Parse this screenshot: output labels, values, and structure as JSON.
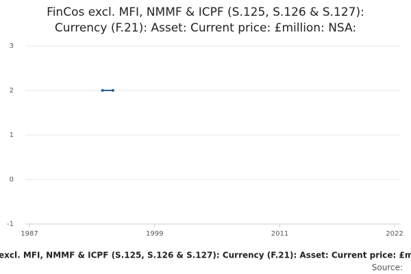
{
  "chart_data": {
    "type": "line",
    "title": [
      "FinCos excl. MFI, NMMF & ICPF (S.125, S.126 & S.127):",
      "Currency (F.21): Asset: Current price: £million: NSA:"
    ],
    "x_label": "excl. MFI, NMMF & ICPF (S.125, S.126 & S.127): Currency (F.21): Asset: Current price: £m",
    "source": "Source:",
    "x": [
      1994,
      1995
    ],
    "series": [
      {
        "name": "FinCos excl. MFI, NMMF & ICPF (S.125, S.126 & S.127): Currency (F.21): Asset: Current price: £million: NSA:",
        "color": "#206095",
        "values": [
          2,
          2
        ]
      }
    ],
    "xlim": [
      1987,
      2022
    ],
    "xticks": [
      1987,
      1999,
      2011,
      2022
    ],
    "ylim": [
      -1,
      3
    ],
    "yticks": [
      -1,
      0,
      1,
      2,
      3
    ],
    "grid": true
  }
}
